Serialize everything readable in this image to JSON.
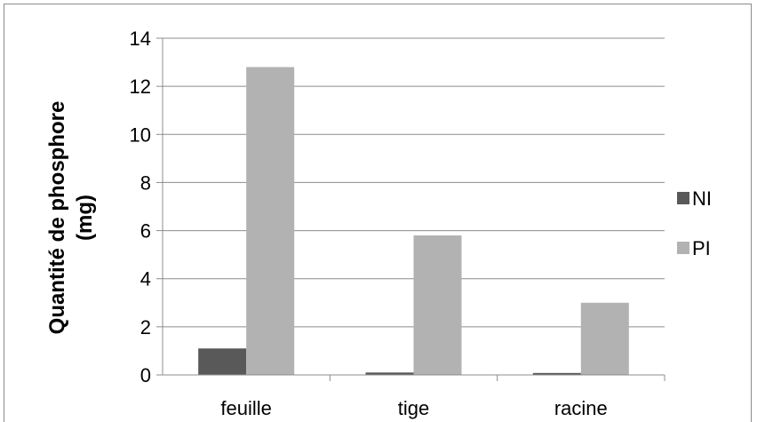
{
  "chart_data": {
    "type": "bar",
    "categories": [
      "feuille",
      "tige",
      "racine"
    ],
    "series": [
      {
        "name": "NI",
        "values": [
          1.1,
          0.1,
          0.08
        ],
        "color": "#595959"
      },
      {
        "name": "PI",
        "values": [
          12.8,
          5.8,
          3.0
        ],
        "color": "#b2b2b2"
      }
    ],
    "ylabel_line1": "Quantité de phosphore",
    "ylabel_line2": "(mg)",
    "xlabel": "",
    "title": "",
    "ylim": [
      0,
      14
    ],
    "yticks": [
      "0",
      "2",
      "4",
      "6",
      "8",
      "10",
      "12",
      "14"
    ],
    "grid": true,
    "legend_position": "right",
    "gridline_color": "#8c8c8c"
  }
}
